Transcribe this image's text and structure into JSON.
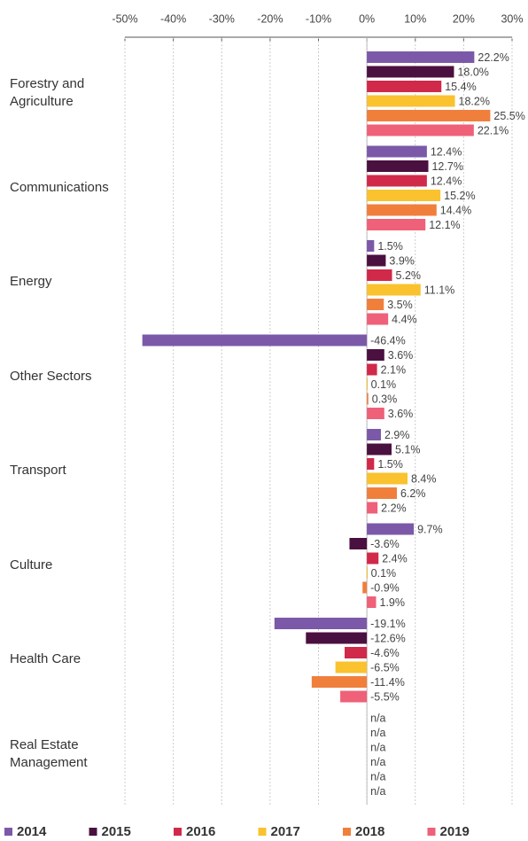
{
  "chart_data": {
    "type": "bar",
    "orientation": "horizontal",
    "categories": [
      "Forestry and Agriculture",
      "Communications",
      "Energy",
      "Other Sectors",
      "Transport",
      "Culture",
      "Health Care",
      "Real Estate Management"
    ],
    "series": [
      {
        "name": "2014",
        "color": "#7b59a8",
        "values": [
          22.2,
          12.4,
          1.5,
          -46.4,
          2.9,
          9.7,
          -19.1,
          null
        ],
        "value_labels": [
          "22.2%",
          "12.4%",
          "1.5%",
          "-46.4%",
          "2.9%",
          "9.7%",
          "-19.1%",
          "n/a"
        ]
      },
      {
        "name": "2015",
        "color": "#4a1040",
        "values": [
          18.0,
          12.7,
          3.9,
          3.6,
          5.1,
          -3.6,
          -12.6,
          null
        ],
        "value_labels": [
          "18.0%",
          "12.7%",
          "3.9%",
          "3.6%",
          "5.1%",
          "-3.6%",
          "-12.6%",
          "n/a"
        ]
      },
      {
        "name": "2016",
        "color": "#d0294a",
        "values": [
          15.4,
          12.4,
          5.2,
          2.1,
          1.5,
          2.4,
          -4.6,
          null
        ],
        "value_labels": [
          "15.4%",
          "12.4%",
          "5.2%",
          "2.1%",
          "1.5%",
          "2.4%",
          "-4.6%",
          "n/a"
        ]
      },
      {
        "name": "2017",
        "color": "#f9c22e",
        "values": [
          18.2,
          15.2,
          11.1,
          0.1,
          8.4,
          0.1,
          -6.5,
          null
        ],
        "value_labels": [
          "18.2%",
          "15.2%",
          "11.1%",
          "0.1%",
          "8.4%",
          "0.1%",
          "-6.5%",
          "n/a"
        ]
      },
      {
        "name": "2018",
        "color": "#f07f3c",
        "values": [
          25.5,
          14.4,
          3.5,
          0.3,
          6.2,
          -0.9,
          -11.4,
          null
        ],
        "value_labels": [
          "25.5%",
          "14.4%",
          "3.5%",
          "0.3%",
          "6.2%",
          "-0.9%",
          "-11.4%",
          "n/a"
        ]
      },
      {
        "name": "2019",
        "color": "#ef6079",
        "values": [
          22.1,
          12.1,
          4.4,
          3.6,
          2.2,
          1.9,
          -5.5,
          null
        ],
        "value_labels": [
          "22.1%",
          "12.1%",
          "4.4%",
          "3.6%",
          "2.2%",
          "1.9%",
          "-5.5%",
          "n/a"
        ]
      }
    ],
    "xlim": [
      -50,
      30
    ],
    "xticks": [
      {
        "value": -50,
        "label": "-50%"
      },
      {
        "value": -40,
        "label": "-40%"
      },
      {
        "value": -30,
        "label": "-30%"
      },
      {
        "value": -20,
        "label": "-20%"
      },
      {
        "value": -10,
        "label": "-10%"
      },
      {
        "value": 0,
        "label": "0%"
      },
      {
        "value": 10,
        "label": "10%"
      },
      {
        "value": 20,
        "label": "20%"
      },
      {
        "value": 30,
        "label": "30%"
      }
    ],
    "grid": true,
    "legend": "bottom"
  }
}
